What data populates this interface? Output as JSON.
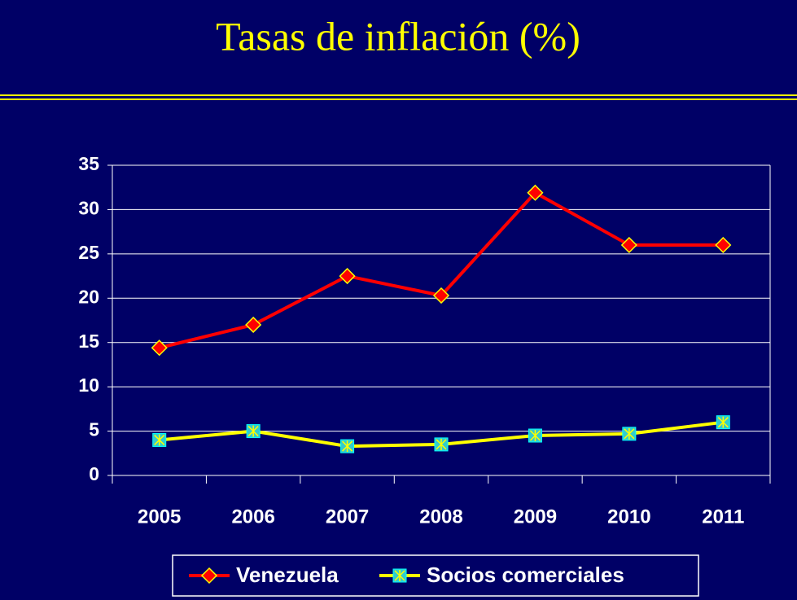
{
  "chart_data": {
    "type": "line",
    "title": "Tasas de inflación (%)",
    "categories": [
      "2005",
      "2006",
      "2007",
      "2008",
      "2009",
      "2010",
      "2011"
    ],
    "series": [
      {
        "name": "Venezuela",
        "color": "#ff0000",
        "values": [
          14.4,
          17.0,
          22.5,
          20.3,
          31.9,
          26.0,
          26.0
        ]
      },
      {
        "name": "Socios comerciales",
        "color": "#ffff00",
        "values": [
          4.0,
          5.0,
          3.3,
          3.5,
          4.5,
          4.7,
          6.0
        ]
      }
    ],
    "ylim": [
      0,
      35
    ],
    "yticks": [
      0,
      5,
      10,
      15,
      20,
      25,
      30,
      35
    ],
    "grid": true,
    "legend": "bottom"
  }
}
